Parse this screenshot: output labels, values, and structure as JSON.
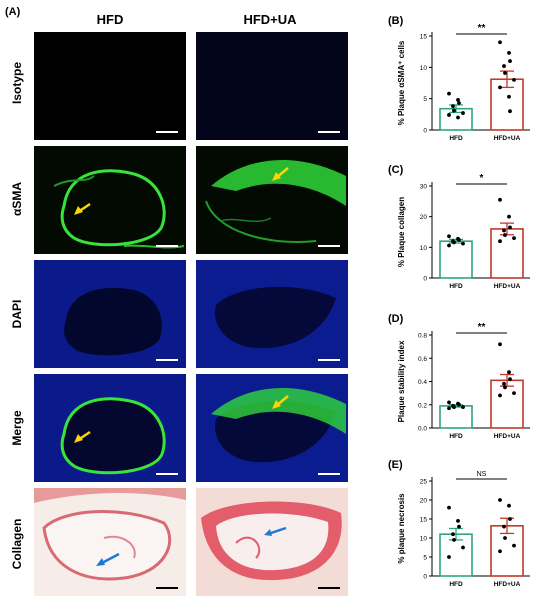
{
  "figure_label": "(A)",
  "columns": [
    "HFD",
    "HFD+UA"
  ],
  "rows": [
    "Isotype",
    "αSMA",
    "DAPI",
    "Merge",
    "Collagen"
  ],
  "chart_data": [
    {
      "panel": "(B)",
      "type": "bar",
      "categories": [
        "HFD",
        "HFD+UA"
      ],
      "values": [
        3.4,
        8.1
      ],
      "errors": [
        0.6,
        1.3
      ],
      "points": [
        [
          5.8,
          4.8,
          4.3,
          3.8,
          3.1,
          2.7,
          2.4,
          2.0
        ],
        [
          14.0,
          12.3,
          11.0,
          10.2,
          9.1,
          8.0,
          6.8,
          5.3,
          3.0
        ]
      ],
      "ylabel": "% Plaque αSMA⁺ cells",
      "yticks": [
        0,
        5,
        10,
        15
      ],
      "ylim": [
        0,
        15
      ],
      "significance": "**",
      "colors": [
        "#2ca77a",
        "#c0392b"
      ]
    },
    {
      "panel": "(C)",
      "type": "bar",
      "categories": [
        "HFD",
        "HFD+UA"
      ],
      "values": [
        12.0,
        16.0
      ],
      "errors": [
        0.6,
        1.9
      ],
      "points": [
        [
          13.6,
          12.8,
          12.4,
          12.0,
          11.6,
          11.2,
          10.6
        ],
        [
          25.5,
          20.0,
          16.5,
          15.5,
          14.0,
          13.0,
          12.0
        ]
      ],
      "ylabel": "% Plaque collagen",
      "yticks": [
        0,
        10,
        20,
        30
      ],
      "ylim": [
        0,
        30
      ],
      "significance": "*",
      "colors": [
        "#2ca77a",
        "#c0392b"
      ]
    },
    {
      "panel": "(D)",
      "type": "bar",
      "categories": [
        "HFD",
        "HFD+UA"
      ],
      "values": [
        0.19,
        0.41
      ],
      "errors": [
        0.01,
        0.05
      ],
      "points": [
        [
          0.22,
          0.21,
          0.2,
          0.19,
          0.18,
          0.18,
          0.17
        ],
        [
          0.72,
          0.48,
          0.42,
          0.38,
          0.35,
          0.3,
          0.28
        ]
      ],
      "ylabel": "Plaque stability index",
      "yticks": [
        0.0,
        0.2,
        0.4,
        0.6,
        0.8
      ],
      "ylim": [
        0,
        0.8
      ],
      "significance": "**",
      "colors": [
        "#2ca77a",
        "#c0392b"
      ]
    },
    {
      "panel": "(E)",
      "type": "bar",
      "categories": [
        "HFD",
        "HFD+UA"
      ],
      "values": [
        11.0,
        13.2
      ],
      "errors": [
        1.5,
        2.0
      ],
      "points": [
        [
          18.0,
          14.5,
          13.0,
          11.0,
          9.5,
          7.5,
          5.0
        ],
        [
          20.0,
          18.5,
          15.0,
          13.0,
          10.0,
          8.0,
          6.5
        ]
      ],
      "ylabel": "% plaque necrosis",
      "yticks": [
        0,
        5,
        10,
        15,
        20,
        25
      ],
      "ylim": [
        0,
        25
      ],
      "significance": "NS",
      "colors": [
        "#2ca77a",
        "#c0392b"
      ]
    }
  ]
}
